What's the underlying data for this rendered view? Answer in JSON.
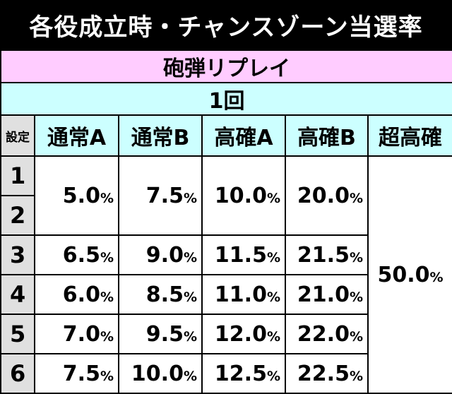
{
  "title": "各役成立時・チャンスゾーン当選率",
  "role_banner": "砲弾リプレイ",
  "count_banner": "1回",
  "headers": {
    "setting": "設定",
    "columns": [
      "通常A",
      "通常B",
      "高確A",
      "高確B",
      "超高確"
    ]
  },
  "rows": {
    "settings": [
      "1",
      "2",
      "3",
      "4",
      "5",
      "6"
    ],
    "s12": {
      "a": "5.0",
      "b": "7.5",
      "ka": "10.0",
      "kb": "20.0"
    },
    "s3": {
      "a": "6.5",
      "b": "9.0",
      "ka": "11.5",
      "kb": "21.5"
    },
    "s4": {
      "a": "6.0",
      "b": "8.5",
      "ka": "11.0",
      "kb": "21.0"
    },
    "s5": {
      "a": "7.0",
      "b": "9.5",
      "ka": "12.0",
      "kb": "22.0"
    },
    "s6": {
      "a": "7.5",
      "b": "10.0",
      "ka": "12.5",
      "kb": "22.5"
    }
  },
  "super_value": "50.0",
  "pct": "%",
  "chart_data": {
    "type": "table",
    "title": "各役成立時・チャンスゾーン当選率",
    "columns": [
      "設定",
      "通常A",
      "通常B",
      "高確A",
      "高確B",
      "超高確"
    ],
    "rows": [
      [
        "1",
        "5.0%",
        "7.5%",
        "10.0%",
        "20.0%",
        "50.0%"
      ],
      [
        "2",
        "5.0%",
        "7.5%",
        "10.0%",
        "20.0%",
        "50.0%"
      ],
      [
        "3",
        "6.5%",
        "9.0%",
        "11.5%",
        "21.5%",
        "50.0%"
      ],
      [
        "4",
        "6.0%",
        "8.5%",
        "11.0%",
        "21.0%",
        "50.0%"
      ],
      [
        "5",
        "7.0%",
        "9.5%",
        "12.0%",
        "22.0%",
        "50.0%"
      ],
      [
        "6",
        "7.5%",
        "10.0%",
        "12.5%",
        "22.5%",
        "50.0%"
      ]
    ]
  }
}
